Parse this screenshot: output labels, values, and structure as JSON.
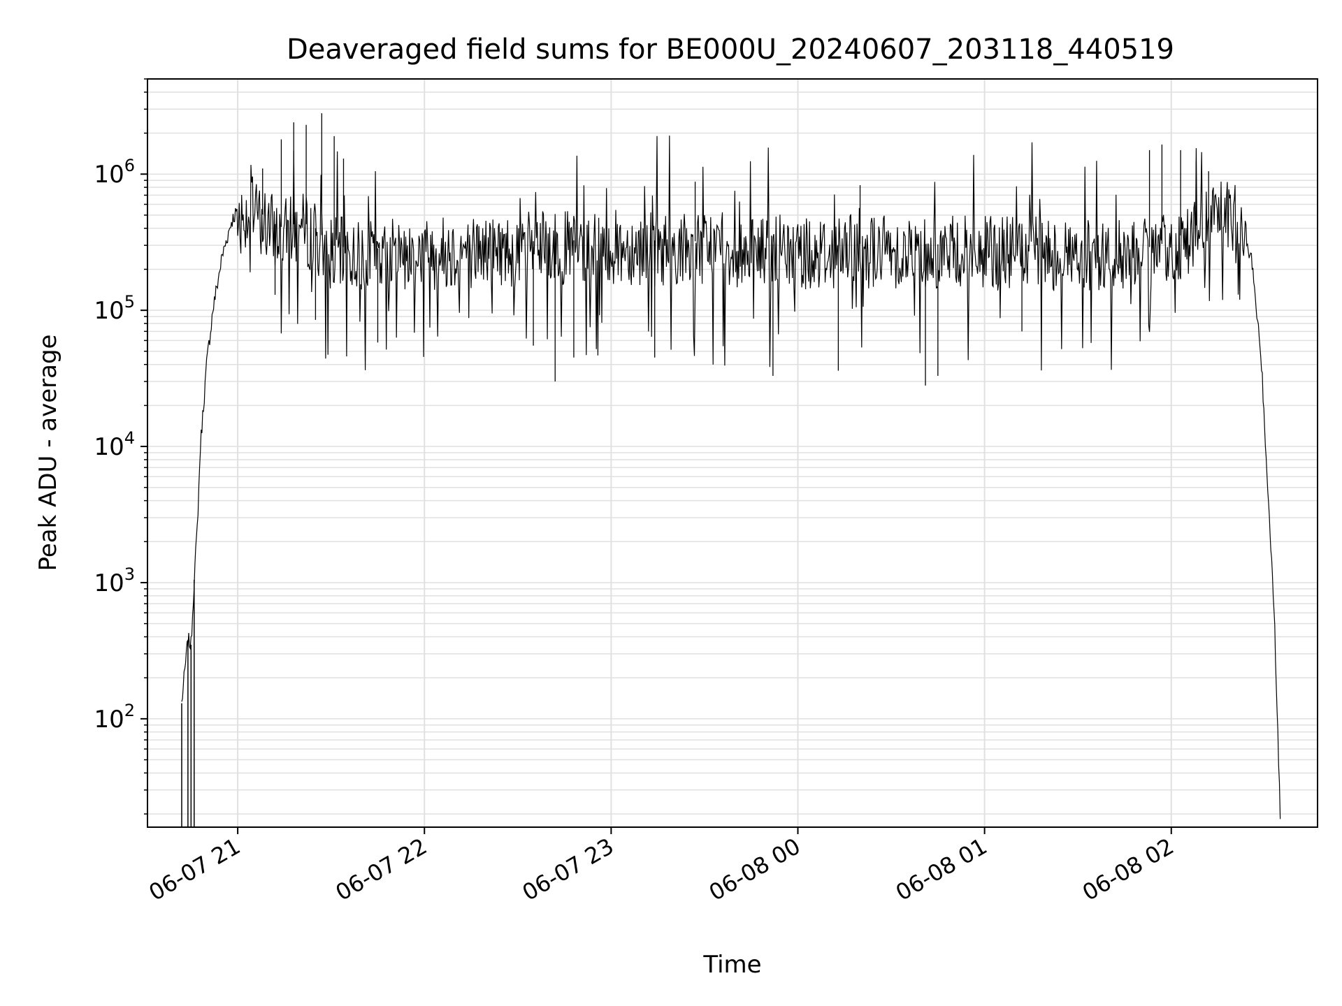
{
  "chart_data": {
    "type": "line",
    "title": "Deaveraged field sums for BE000U_20240607_203118_440519",
    "xlabel": "Time",
    "ylabel": "Peak ADU - average",
    "yscale": "log",
    "ylim": [
      16,
      5000000
    ],
    "xlim": [
      "2024-06-07 20:31",
      "2024-06-08 02:47"
    ],
    "grid": true,
    "line_color": "#000000",
    "grid_color": "#e0e0e0",
    "x_ticks": [
      {
        "value": "2024-06-07 21:00",
        "label": "06-07 21"
      },
      {
        "value": "2024-06-07 22:00",
        "label": "06-07 22"
      },
      {
        "value": "2024-06-07 23:00",
        "label": "06-07 23"
      },
      {
        "value": "2024-06-08 00:00",
        "label": "06-08 00"
      },
      {
        "value": "2024-06-08 01:00",
        "label": "06-08 01"
      },
      {
        "value": "2024-06-08 02:00",
        "label": "06-08 02"
      }
    ],
    "y_ticks": [
      {
        "value": 100,
        "base": "10",
        "exp": "2"
      },
      {
        "value": 1000,
        "base": "10",
        "exp": "3"
      },
      {
        "value": 10000,
        "base": "10",
        "exp": "4"
      },
      {
        "value": 100000,
        "base": "10",
        "exp": "5"
      },
      {
        "value": 1000000,
        "base": "10",
        "exp": "6"
      }
    ],
    "series": [
      {
        "points": [
          [
            "2024-06-07 20:42",
            130
          ],
          [
            "2024-06-07 20:44",
            380
          ],
          [
            "2024-06-07 20:45",
            350
          ],
          [
            "2024-06-07 20:46",
            1050
          ],
          [
            "2024-06-07 20:47",
            2500
          ],
          [
            "2024-06-07 20:48",
            10000
          ],
          [
            "2024-06-07 20:50",
            40000
          ],
          [
            "2024-06-07 20:52",
            100000
          ],
          [
            "2024-06-07 20:55",
            250000
          ],
          [
            "2024-06-07 20:58",
            450000
          ],
          [
            "2024-06-07 21:00",
            550000
          ],
          [
            "2024-06-07 21:05",
            600000
          ],
          [
            "2024-06-07 21:10",
            450000
          ],
          [
            "2024-06-07 21:15",
            400000
          ],
          [
            "2024-06-07 21:20",
            450000
          ],
          [
            "2024-06-07 21:25",
            400000
          ],
          [
            "2024-06-07 21:30",
            300000
          ],
          [
            "2024-06-07 21:40",
            280000
          ],
          [
            "2024-06-07 22:00",
            300000
          ],
          [
            "2024-06-07 22:30",
            320000
          ],
          [
            "2024-06-07 23:00",
            330000
          ],
          [
            "2024-06-07 23:30",
            320000
          ],
          [
            "2024-06-08 00:00",
            300000
          ],
          [
            "2024-06-08 00:30",
            310000
          ],
          [
            "2024-06-08 01:00",
            300000
          ],
          [
            "2024-06-08 01:30",
            290000
          ],
          [
            "2024-06-08 01:50",
            280000
          ],
          [
            "2024-06-08 02:00",
            320000
          ],
          [
            "2024-06-08 02:10",
            450000
          ],
          [
            "2024-06-08 02:17",
            550000
          ],
          [
            "2024-06-08 02:22",
            450000
          ],
          [
            "2024-06-08 02:26",
            220000
          ],
          [
            "2024-06-08 02:29",
            40000
          ],
          [
            "2024-06-08 02:31",
            5000
          ],
          [
            "2024-06-08 02:33",
            700
          ],
          [
            "2024-06-08 02:35",
            20
          ]
        ],
        "spikes": [
          [
            "2024-06-07 21:08",
            1100000
          ],
          [
            "2024-06-07 21:14",
            1800000
          ],
          [
            "2024-06-07 21:18",
            2400000
          ],
          [
            "2024-06-07 21:22",
            2300000
          ],
          [
            "2024-06-07 21:27",
            2800000
          ],
          [
            "2024-06-07 21:31",
            1900000
          ],
          [
            "2024-06-07 21:34",
            1300000
          ],
          [
            "2024-06-07 23:27",
            880000
          ],
          [
            "2024-06-08 00:20",
            830000
          ],
          [
            "2024-06-08 01:53",
            1500000
          ],
          [
            "2024-06-08 01:57",
            1650000
          ],
          [
            "2024-06-08 02:03",
            1500000
          ],
          [
            "2024-06-08 02:08",
            1250000
          ],
          [
            "2024-06-08 02:12",
            1050000
          ],
          [
            "2024-06-07 21:12",
            130000
          ],
          [
            "2024-06-07 21:25",
            85000
          ],
          [
            "2024-06-07 21:45",
            58000
          ],
          [
            "2024-06-07 22:35",
            55000
          ],
          [
            "2024-06-07 22:42",
            30000
          ],
          [
            "2024-06-07 22:48",
            45000
          ],
          [
            "2024-06-07 23:14",
            45000
          ],
          [
            "2024-06-07 23:52",
            33000
          ],
          [
            "2024-06-08 00:13",
            36000
          ],
          [
            "2024-06-08 00:41",
            28000
          ],
          [
            "2024-06-08 00:45",
            33000
          ],
          [
            "2024-06-08 01:12",
            70000
          ]
        ]
      }
    ]
  }
}
